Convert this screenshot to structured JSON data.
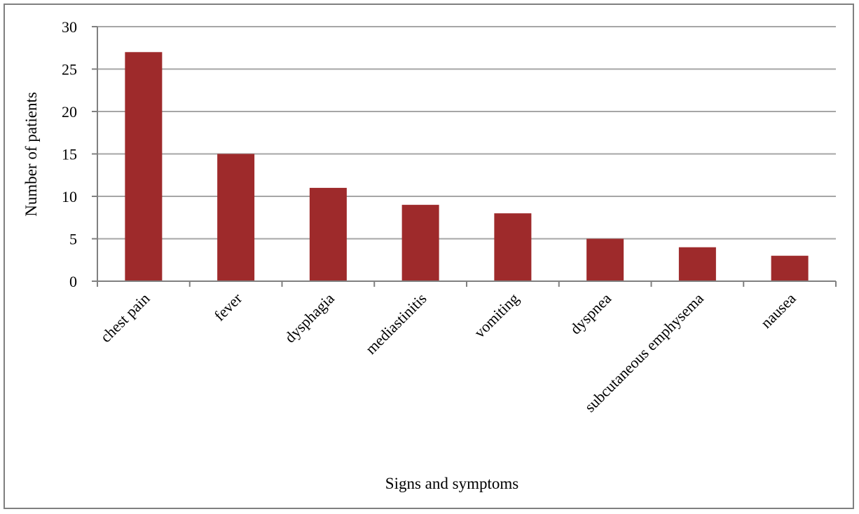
{
  "chart_data": {
    "type": "bar",
    "categories": [
      "chest pain",
      "fever",
      "dysphagia",
      "mediastinitis",
      "vomiting",
      "dyspnea",
      "subcutaneous emphysema",
      "nausea"
    ],
    "values": [
      27,
      15,
      11,
      9,
      8,
      5,
      4,
      3
    ],
    "title": "",
    "xlabel": "Signs and symptoms",
    "ylabel": "Number of patients",
    "ylim": [
      0,
      30
    ],
    "yticks": [
      "0",
      "5",
      "10",
      "15",
      "20",
      "25",
      "30"
    ],
    "grid": true,
    "legend": "none",
    "colors": {
      "bar": "#9e2a2b",
      "grid": "#a6a6a6",
      "axis": "#808080"
    }
  }
}
